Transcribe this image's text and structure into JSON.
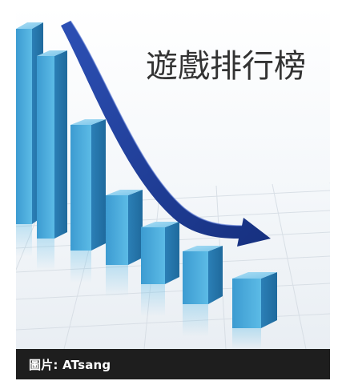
{
  "image": {
    "headline": "遊戲排行榜",
    "bar_color": "#4aa7d8",
    "arrow_color": "#1f3e9a"
  },
  "caption": {
    "text": "圖片: ATsang"
  }
}
